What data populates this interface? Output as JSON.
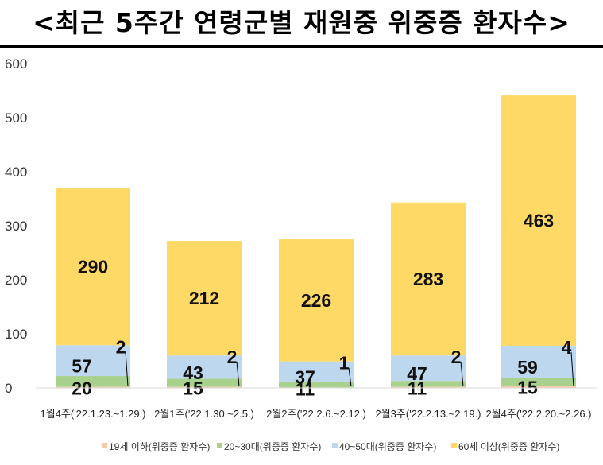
{
  "title": "<최근 5주간 연령군별 재원중 위중증 환자수>",
  "chart_data": {
    "type": "bar",
    "stacked": true,
    "categories": [
      "1월4주('22.1.23.~1.29.)",
      "2월1주('22.1.30.~2.5.)",
      "2월2주('22.2.6.~2.12.)",
      "2월3주('22.2.13.~2.19.)",
      "2월4주('22.2.20.~2.26.)"
    ],
    "series": [
      {
        "name": "19세 이하(위중증 환자수)",
        "values": [
          2,
          2,
          1,
          2,
          4
        ],
        "color": "#F8CBAD"
      },
      {
        "name": "20~30대(위중증 환자수)",
        "values": [
          20,
          15,
          11,
          11,
          15
        ],
        "color": "#A9D18E"
      },
      {
        "name": "40~50대(위중증 환자수)",
        "values": [
          57,
          43,
          37,
          47,
          59
        ],
        "color": "#BDD7EE"
      },
      {
        "name": "60세 이상(위중증 환자수)",
        "values": [
          290,
          212,
          226,
          283,
          463
        ],
        "color": "#FFD966"
      }
    ],
    "ylim": [
      0,
      600
    ],
    "yticks": [
      0,
      100,
      200,
      300,
      400,
      500,
      600
    ],
    "legend_position": "bottom",
    "grid": false
  }
}
